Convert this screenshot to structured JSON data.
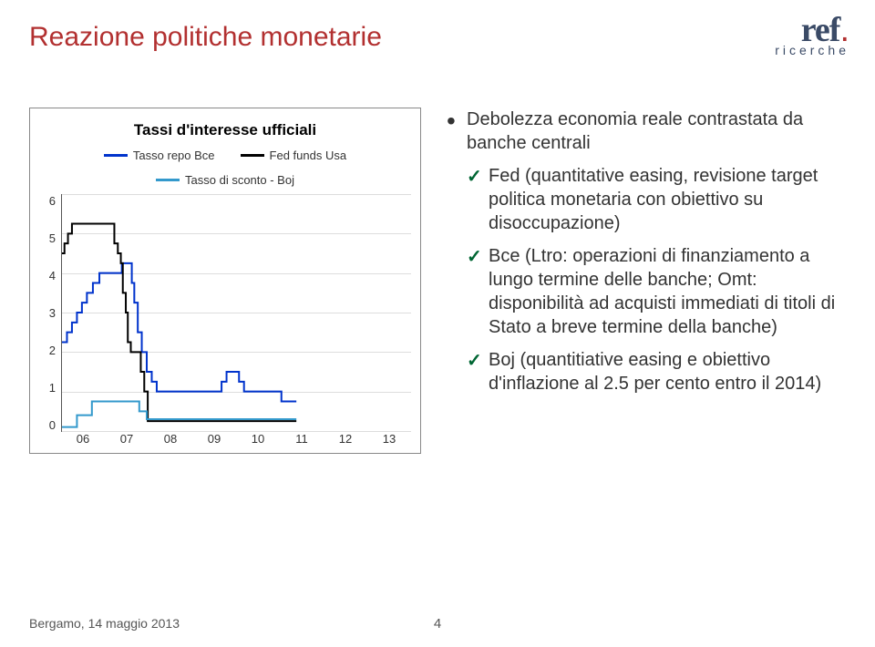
{
  "title": {
    "text": "Reazione politiche monetarie",
    "color": "#b23030"
  },
  "logo": {
    "main": "ref",
    "main_color": "#3a4a66",
    "dot_color": "#b23030",
    "sub": "ricerche",
    "sub_color": "#3a4a66"
  },
  "chart": {
    "type": "step-line",
    "title": "Tassi d'interesse ufficiali",
    "title_color": "#000000",
    "background": "#ffffff",
    "border_color": "#888888",
    "axis_color": "#555555",
    "grid_color": "#dddddd",
    "y": {
      "min": 0,
      "max": 6,
      "step": 1
    },
    "x": {
      "labels": [
        "06",
        "07",
        "08",
        "09",
        "10",
        "11",
        "12",
        "13"
      ]
    },
    "legend_font_size": 13,
    "axis_font_size": 13,
    "title_font_size": 17,
    "series": [
      {
        "name": "Tasso repo Bce",
        "color": "#0033cc",
        "width": 2,
        "points": [
          [
            0.0,
            2.25
          ],
          [
            0.1,
            2.5
          ],
          [
            0.2,
            2.75
          ],
          [
            0.3,
            3.0
          ],
          [
            0.4,
            3.25
          ],
          [
            0.5,
            3.5
          ],
          [
            0.62,
            3.75
          ],
          [
            0.75,
            4.0
          ],
          [
            1.0,
            4.0
          ],
          [
            1.2,
            4.25
          ],
          [
            1.3,
            4.25
          ],
          [
            1.4,
            3.75
          ],
          [
            1.45,
            3.25
          ],
          [
            1.52,
            2.5
          ],
          [
            1.6,
            2.0
          ],
          [
            1.7,
            1.5
          ],
          [
            1.8,
            1.25
          ],
          [
            1.9,
            1.0
          ],
          [
            3.1,
            1.0
          ],
          [
            3.2,
            1.25
          ],
          [
            3.3,
            1.5
          ],
          [
            3.45,
            1.5
          ],
          [
            3.55,
            1.25
          ],
          [
            3.65,
            1.0
          ],
          [
            4.3,
            1.0
          ],
          [
            4.4,
            0.75
          ],
          [
            4.7,
            0.75
          ]
        ]
      },
      {
        "name": "Fed funds Usa",
        "color": "#000000",
        "width": 2,
        "points": [
          [
            0.0,
            4.5
          ],
          [
            0.05,
            4.75
          ],
          [
            0.12,
            5.0
          ],
          [
            0.2,
            5.25
          ],
          [
            1.0,
            5.25
          ],
          [
            1.05,
            4.75
          ],
          [
            1.12,
            4.5
          ],
          [
            1.18,
            4.25
          ],
          [
            1.22,
            3.5
          ],
          [
            1.28,
            3.0
          ],
          [
            1.32,
            2.25
          ],
          [
            1.38,
            2.0
          ],
          [
            1.5,
            2.0
          ],
          [
            1.58,
            1.5
          ],
          [
            1.65,
            1.0
          ],
          [
            1.72,
            0.25
          ],
          [
            4.7,
            0.25
          ]
        ]
      },
      {
        "name": "Tasso di sconto - Boj",
        "color": "#3399cc",
        "width": 2,
        "points": [
          [
            0.0,
            0.1
          ],
          [
            0.3,
            0.1
          ],
          [
            0.3,
            0.4
          ],
          [
            0.6,
            0.4
          ],
          [
            0.6,
            0.75
          ],
          [
            1.55,
            0.75
          ],
          [
            1.55,
            0.5
          ],
          [
            1.7,
            0.5
          ],
          [
            1.7,
            0.3
          ],
          [
            4.7,
            0.3
          ]
        ]
      }
    ]
  },
  "bullets": {
    "lead": "Debolezza economia reale contrastata da banche centrali",
    "lead_color": "#000000",
    "check_color": "#006633",
    "items": [
      "Fed (quantitative easing, revisione target politica monetaria con obiettivo su disoccupazione)",
      "Bce (Ltro: operazioni di finanziamento a lungo termine delle banche; Omt: disponibilità ad acquisti immediati di titoli di Stato a breve termine della banche)",
      "Boj (quantitiative easing e obiettivo d'inflazione al 2.5 per cento entro il 2014)"
    ]
  },
  "footer": {
    "text": "Bergamo, 14 maggio 2013",
    "page_number": "4",
    "color": "#555555"
  }
}
